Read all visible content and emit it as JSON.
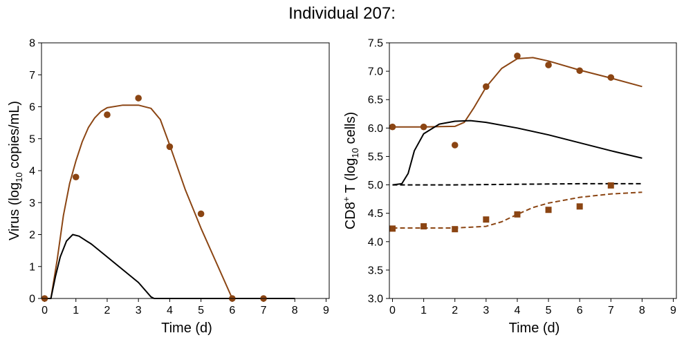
{
  "title": "Individual 207:",
  "colors": {
    "brown": "#8B4513",
    "black": "#000000"
  },
  "chart_data": [
    {
      "type": "line",
      "xlabel": "Time (d)",
      "ylabel": {
        "pre": "Virus (log",
        "sub": "10",
        "post": " copies/mL)"
      },
      "xlim": [
        -0.1,
        9.1
      ],
      "ylim": [
        0,
        8
      ],
      "xticks": [
        "0",
        "1",
        "2",
        "3",
        "4",
        "5",
        "6",
        "7",
        "8",
        "9"
      ],
      "yticks": [
        "0",
        "1",
        "2",
        "3",
        "4",
        "5",
        "6",
        "7",
        "8"
      ],
      "grid": false,
      "series": [
        {
          "style": "line",
          "color": "brown",
          "dash": false,
          "points": [
            [
              0,
              0
            ],
            [
              0.2,
              0
            ],
            [
              0.4,
              1.2
            ],
            [
              0.6,
              2.6
            ],
            [
              0.8,
              3.6
            ],
            [
              1,
              4.3
            ],
            [
              1.2,
              4.9
            ],
            [
              1.4,
              5.35
            ],
            [
              1.6,
              5.65
            ],
            [
              1.8,
              5.85
            ],
            [
              2,
              5.97
            ],
            [
              2.5,
              6.05
            ],
            [
              3,
              6.05
            ],
            [
              3.4,
              5.95
            ],
            [
              3.7,
              5.6
            ],
            [
              4,
              4.8
            ],
            [
              4.5,
              3.4
            ],
            [
              5,
              2.2
            ],
            [
              5.5,
              1.1
            ],
            [
              6,
              0
            ],
            [
              8,
              0
            ]
          ]
        },
        {
          "style": "line",
          "color": "black",
          "dash": false,
          "points": [
            [
              0,
              0
            ],
            [
              0.2,
              0
            ],
            [
              0.35,
              0.7
            ],
            [
              0.5,
              1.3
            ],
            [
              0.7,
              1.8
            ],
            [
              0.9,
              2.0
            ],
            [
              1.1,
              1.95
            ],
            [
              1.5,
              1.7
            ],
            [
              2,
              1.3
            ],
            [
              2.5,
              0.9
            ],
            [
              3,
              0.5
            ],
            [
              3.4,
              0.05
            ],
            [
              3.5,
              0
            ],
            [
              8,
              0
            ]
          ]
        },
        {
          "style": "markers",
          "marker": "circle",
          "color": "brown",
          "points": [
            [
              0,
              0
            ],
            [
              1,
              3.8
            ],
            [
              2,
              5.75
            ],
            [
              3,
              6.27
            ],
            [
              4,
              4.75
            ],
            [
              5,
              2.65
            ],
            [
              6,
              0
            ],
            [
              7,
              0
            ]
          ]
        }
      ]
    },
    {
      "type": "line",
      "xlabel": "Time (d)",
      "ylabel": {
        "pre": "CD8",
        "sup": "+",
        "post": " T (log",
        "sub": "10",
        "post2": " cells)"
      },
      "xlim": [
        -0.1,
        9.1
      ],
      "ylim": [
        3.0,
        7.5
      ],
      "xticks": [
        "0",
        "1",
        "2",
        "3",
        "4",
        "5",
        "6",
        "7",
        "8",
        "9"
      ],
      "yticks": [
        "3.0",
        "3.5",
        "4.0",
        "4.5",
        "5.0",
        "5.5",
        "6.0",
        "6.5",
        "7.0",
        "7.5"
      ],
      "grid": false,
      "series": [
        {
          "style": "line",
          "color": "brown",
          "dash": false,
          "points": [
            [
              0,
              6.02
            ],
            [
              1,
              6.02
            ],
            [
              2,
              6.03
            ],
            [
              2.3,
              6.1
            ],
            [
              2.6,
              6.35
            ],
            [
              3,
              6.72
            ],
            [
              3.5,
              7.05
            ],
            [
              4,
              7.22
            ],
            [
              4.5,
              7.24
            ],
            [
              5,
              7.18
            ],
            [
              6,
              7.02
            ],
            [
              7,
              6.88
            ],
            [
              8,
              6.73
            ]
          ]
        },
        {
          "style": "line",
          "color": "black",
          "dash": false,
          "points": [
            [
              0,
              5.0
            ],
            [
              0.3,
              5.02
            ],
            [
              0.5,
              5.2
            ],
            [
              0.7,
              5.6
            ],
            [
              1,
              5.9
            ],
            [
              1.5,
              6.07
            ],
            [
              2,
              6.12
            ],
            [
              2.5,
              6.13
            ],
            [
              3,
              6.1
            ],
            [
              4,
              6.0
            ],
            [
              5,
              5.88
            ],
            [
              6,
              5.74
            ],
            [
              7,
              5.6
            ],
            [
              8,
              5.47
            ]
          ]
        },
        {
          "style": "line",
          "color": "black",
          "dash": true,
          "points": [
            [
              0,
              5.0
            ],
            [
              2,
              5.0
            ],
            [
              4,
              5.01
            ],
            [
              6,
              5.02
            ],
            [
              8,
              5.02
            ]
          ]
        },
        {
          "style": "line",
          "color": "brown",
          "dash": true,
          "points": [
            [
              0,
              4.24
            ],
            [
              1,
              4.24
            ],
            [
              2,
              4.24
            ],
            [
              3,
              4.27
            ],
            [
              3.5,
              4.35
            ],
            [
              4,
              4.48
            ],
            [
              4.5,
              4.6
            ],
            [
              5,
              4.68
            ],
            [
              6,
              4.78
            ],
            [
              7,
              4.84
            ],
            [
              8,
              4.87
            ]
          ]
        },
        {
          "style": "markers",
          "marker": "circle",
          "color": "brown",
          "points": [
            [
              0,
              6.02
            ],
            [
              1,
              6.02
            ],
            [
              2,
              5.7
            ],
            [
              3,
              6.73
            ],
            [
              4,
              7.27
            ],
            [
              5,
              7.11
            ],
            [
              6,
              7.01
            ],
            [
              7,
              6.89
            ]
          ]
        },
        {
          "style": "markers",
          "marker": "square",
          "color": "brown",
          "points": [
            [
              0,
              4.23
            ],
            [
              1,
              4.27
            ],
            [
              2,
              4.22
            ],
            [
              3,
              4.39
            ],
            [
              4,
              4.48
            ],
            [
              5,
              4.56
            ],
            [
              6,
              4.62
            ],
            [
              7,
              4.99
            ]
          ]
        }
      ]
    }
  ]
}
